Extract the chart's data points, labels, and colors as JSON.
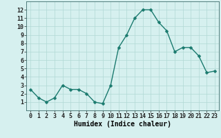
{
  "x": [
    0,
    1,
    2,
    3,
    4,
    5,
    6,
    7,
    8,
    9,
    10,
    11,
    12,
    13,
    14,
    15,
    16,
    17,
    18,
    19,
    20,
    21,
    22,
    23
  ],
  "y": [
    2.5,
    1.5,
    1.0,
    1.5,
    3.0,
    2.5,
    2.5,
    2.0,
    1.0,
    0.8,
    3.0,
    7.5,
    9.0,
    11.0,
    12.0,
    12.0,
    10.5,
    9.5,
    7.0,
    7.5,
    7.5,
    6.5,
    4.5,
    4.7
  ],
  "line_color": "#1a7a6e",
  "marker_color": "#1a7a6e",
  "bg_color": "#d6f0ef",
  "grid_color": "#b0d8d4",
  "xlabel": "Humidex (Indice chaleur)",
  "xlim": [
    -0.5,
    23.5
  ],
  "ylim": [
    0,
    13
  ],
  "ytick_values": [
    1,
    2,
    3,
    4,
    5,
    6,
    7,
    8,
    9,
    10,
    11,
    12
  ],
  "xlabel_fontsize": 7,
  "tick_fontsize": 6,
  "marker_size": 2.5,
  "line_width": 1.0
}
